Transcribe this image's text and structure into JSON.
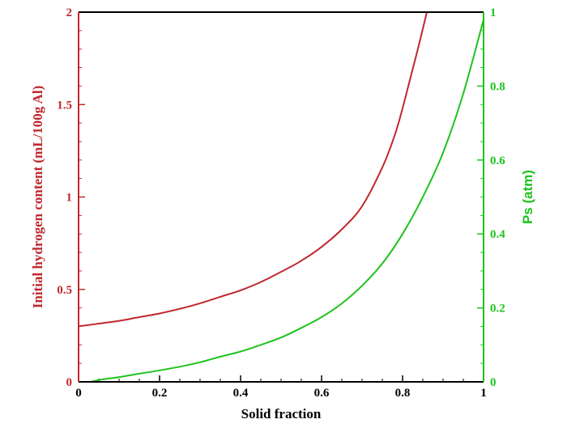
{
  "chart_data": {
    "type": "line",
    "title": "",
    "xlabel": "Solid fraction",
    "ylabel_left": "Initial hydrogen content (mL/100g Al)",
    "ylabel_right": "Ps (atm)",
    "xlim": [
      0,
      1
    ],
    "ylim_left": [
      0,
      2
    ],
    "ylim_right": [
      0,
      1
    ],
    "x_ticks": [
      "0",
      "0.2",
      "0.4",
      "0.6",
      "0.8",
      "1"
    ],
    "y_left_ticks": [
      "0",
      "0.5",
      "1",
      "1.5",
      "2"
    ],
    "y_right_ticks": [
      "0",
      "0.2",
      "0.4",
      "0.6",
      "0.8",
      "1"
    ],
    "grid": false,
    "legend": "none",
    "series": [
      {
        "axis": "left",
        "color": "#c0282d",
        "x": [
          0,
          0.05,
          0.1,
          0.15,
          0.2,
          0.25,
          0.3,
          0.35,
          0.4,
          0.45,
          0.5,
          0.55,
          0.6,
          0.65,
          0.7,
          0.75,
          0.78,
          0.8,
          0.82,
          0.84,
          0.86
        ],
        "y": [
          0.3,
          0.315,
          0.33,
          0.35,
          0.37,
          0.395,
          0.425,
          0.46,
          0.495,
          0.54,
          0.595,
          0.655,
          0.73,
          0.825,
          0.95,
          1.16,
          1.33,
          1.48,
          1.65,
          1.82,
          2.0
        ]
      },
      {
        "axis": "right",
        "color": "#1ec31e",
        "x": [
          0.03,
          0.05,
          0.1,
          0.15,
          0.2,
          0.25,
          0.3,
          0.35,
          0.4,
          0.45,
          0.5,
          0.55,
          0.6,
          0.65,
          0.7,
          0.75,
          0.8,
          0.85,
          0.9,
          0.95,
          1.0
        ],
        "y": [
          0.0,
          0.005,
          0.013,
          0.022,
          0.031,
          0.041,
          0.053,
          0.068,
          0.082,
          0.1,
          0.12,
          0.146,
          0.175,
          0.212,
          0.26,
          0.32,
          0.4,
          0.5,
          0.62,
          0.78,
          0.98
        ]
      }
    ]
  },
  "colors": {
    "axis_left": "#c0282d",
    "axis_right": "#1ec31e",
    "axis_bottom": "#000000"
  }
}
